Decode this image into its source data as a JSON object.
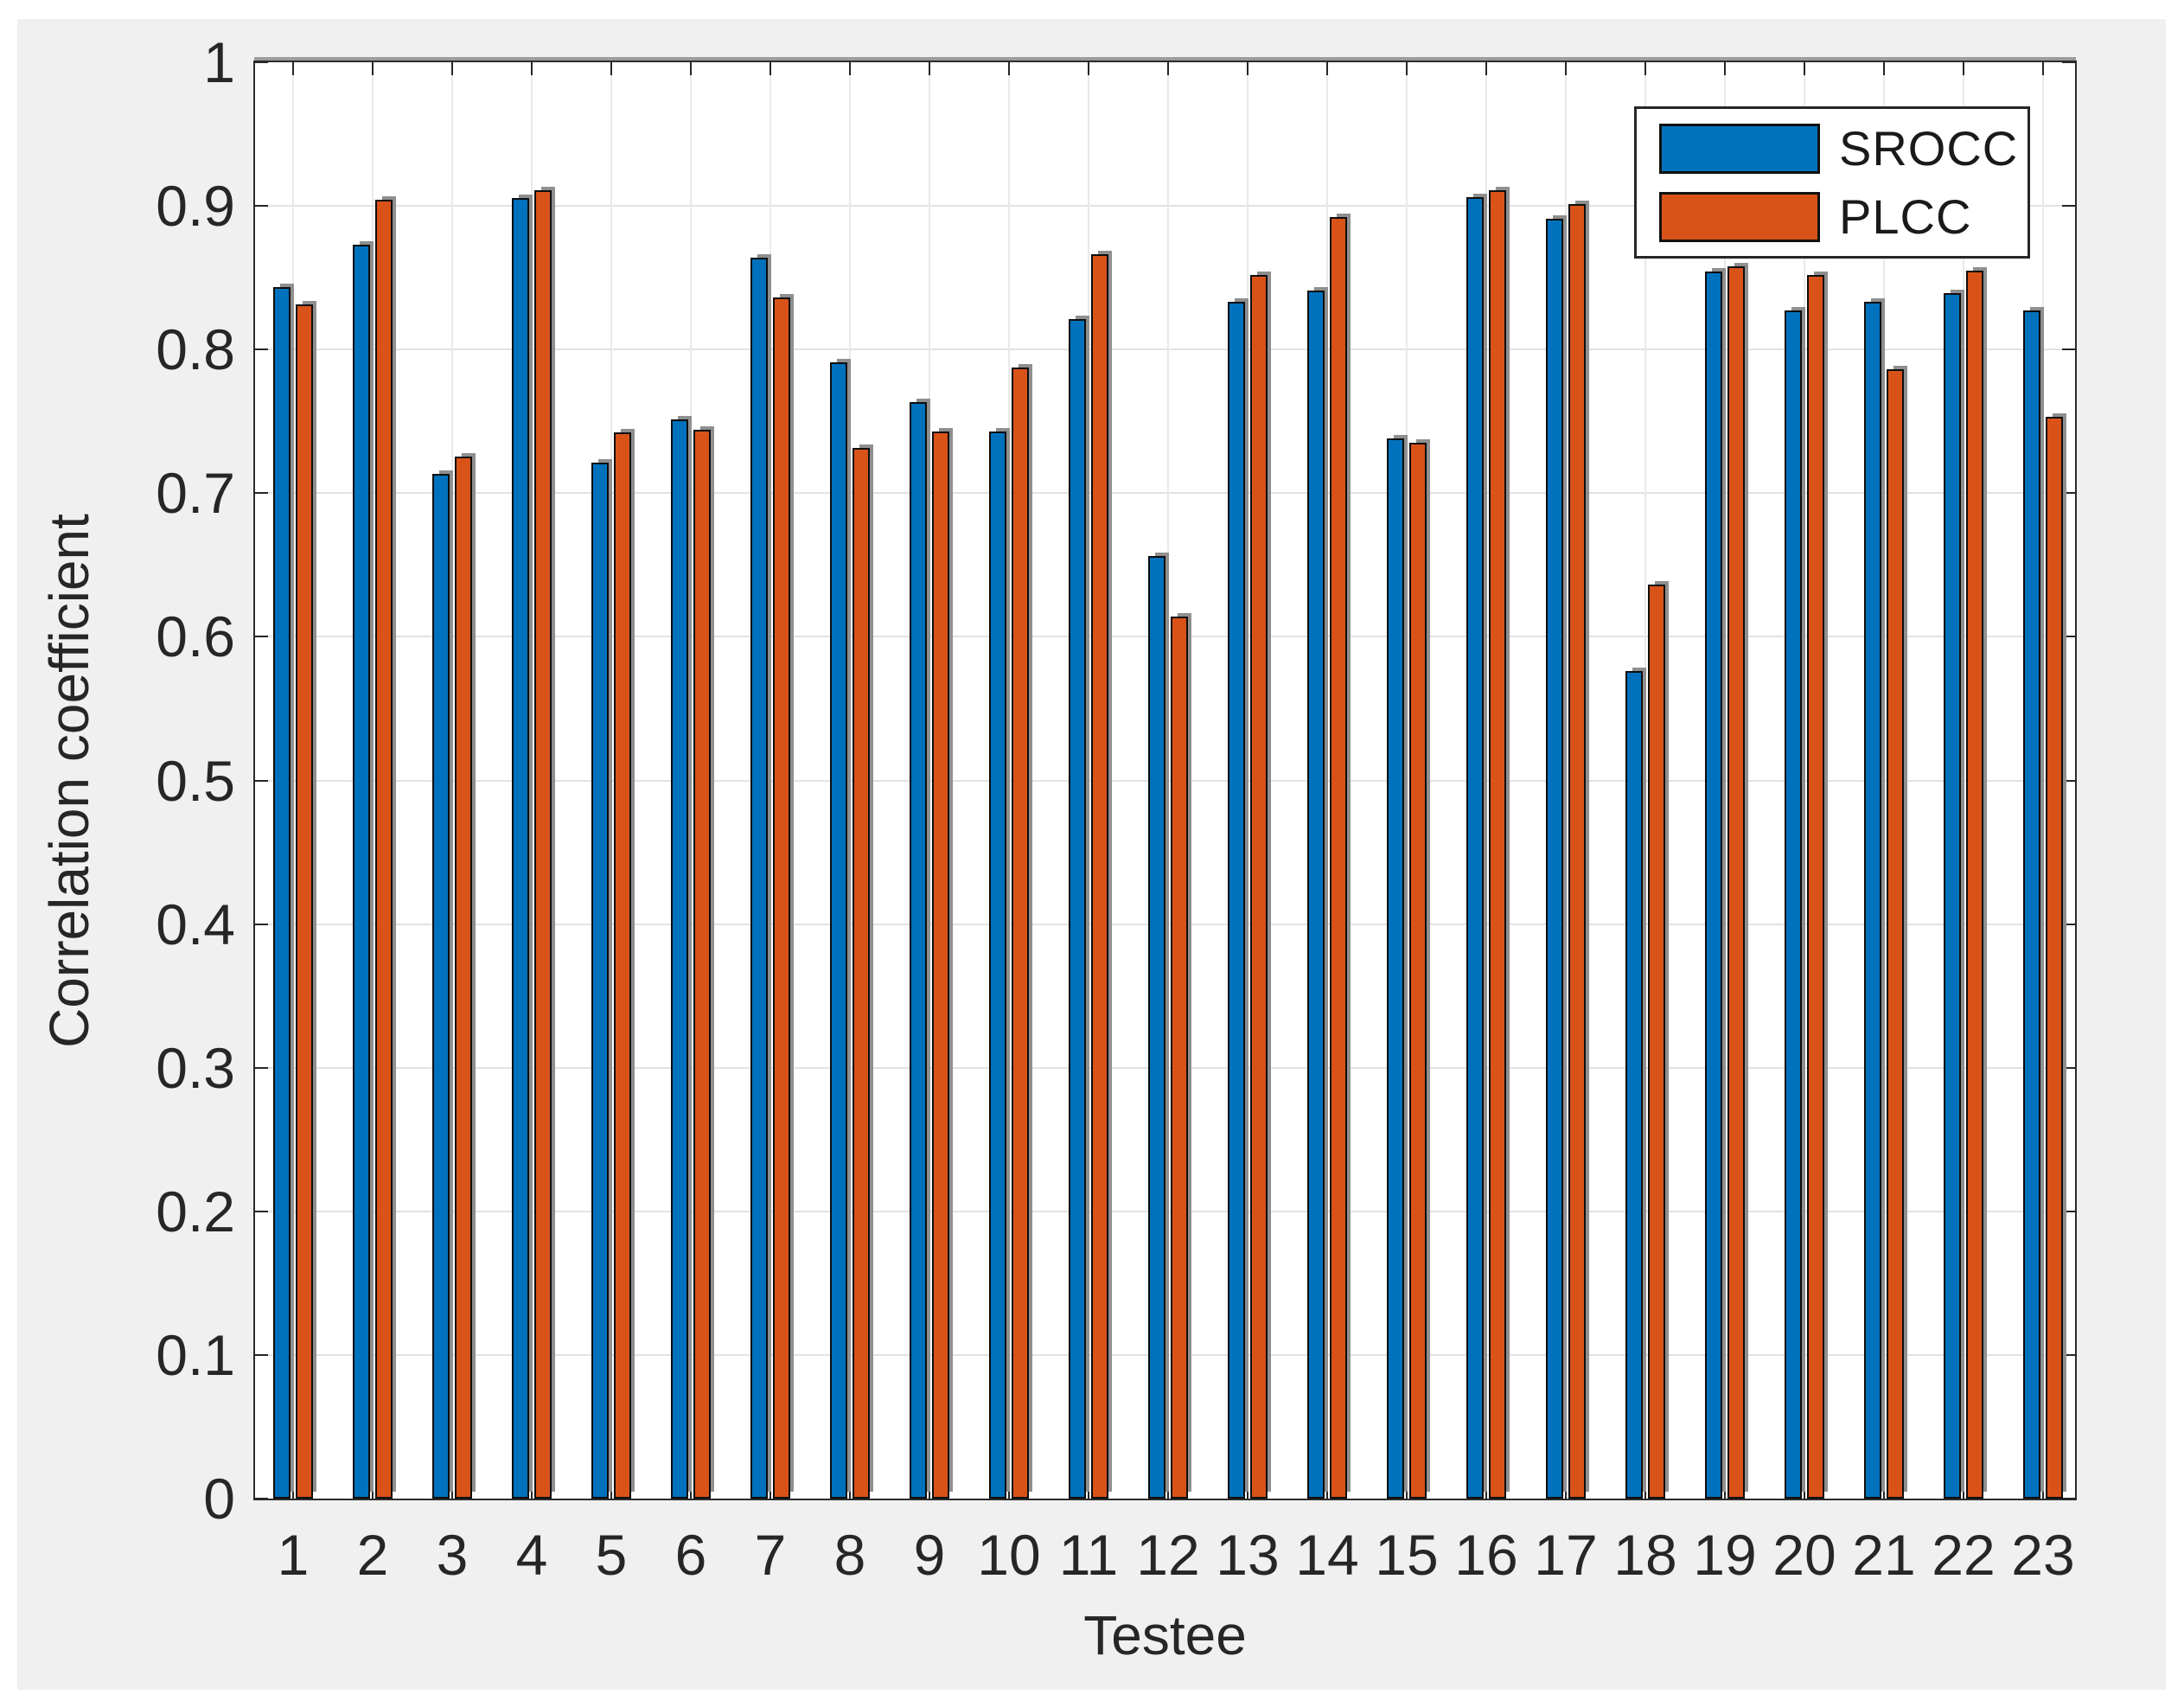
{
  "chart_data": {
    "type": "bar",
    "title": "",
    "xlabel": "Testee",
    "ylabel": "Correlation coefficient",
    "categories": [
      "1",
      "2",
      "3",
      "4",
      "5",
      "6",
      "7",
      "8",
      "9",
      "10",
      "11",
      "12",
      "13",
      "14",
      "15",
      "16",
      "17",
      "18",
      "19",
      "20",
      "21",
      "22",
      "23"
    ],
    "series": [
      {
        "name": "SROCC",
        "color": "#0072BD",
        "values": [
          0.842,
          0.872,
          0.712,
          0.904,
          0.72,
          0.75,
          0.863,
          0.79,
          0.762,
          0.742,
          0.82,
          0.655,
          0.832,
          0.84,
          0.737,
          0.905,
          0.89,
          0.575,
          0.853,
          0.826,
          0.832,
          0.838,
          0.826
        ]
      },
      {
        "name": "PLCC",
        "color": "#D95319",
        "values": [
          0.83,
          0.903,
          0.724,
          0.91,
          0.741,
          0.743,
          0.835,
          0.73,
          0.742,
          0.786,
          0.865,
          0.613,
          0.851,
          0.891,
          0.734,
          0.91,
          0.9,
          0.635,
          0.857,
          0.851,
          0.785,
          0.854,
          0.752
        ]
      }
    ],
    "ylim": [
      0,
      1
    ],
    "yticks": [
      0,
      0.1,
      0.2,
      0.3,
      0.4,
      0.5,
      0.6,
      0.7,
      0.8,
      0.9,
      1
    ],
    "ytick_labels": [
      "0",
      "0.1",
      "0.2",
      "0.3",
      "0.4",
      "0.5",
      "0.6",
      "0.7",
      "0.8",
      "0.9",
      "1"
    ],
    "grid": true,
    "legend_position": "top-right"
  },
  "style": {
    "figure_background": "#f0f0f0",
    "plot_background": "#ffffff",
    "axis_color": "#2b2b2b",
    "grid_color": "#e2e2e2",
    "tick_label_color": "#262626",
    "bar_edge_color": "#0d0d0d",
    "bar_shadow_color": "#8f8f8f",
    "srocc_color": "#0072BD",
    "plcc_color": "#D95319"
  }
}
